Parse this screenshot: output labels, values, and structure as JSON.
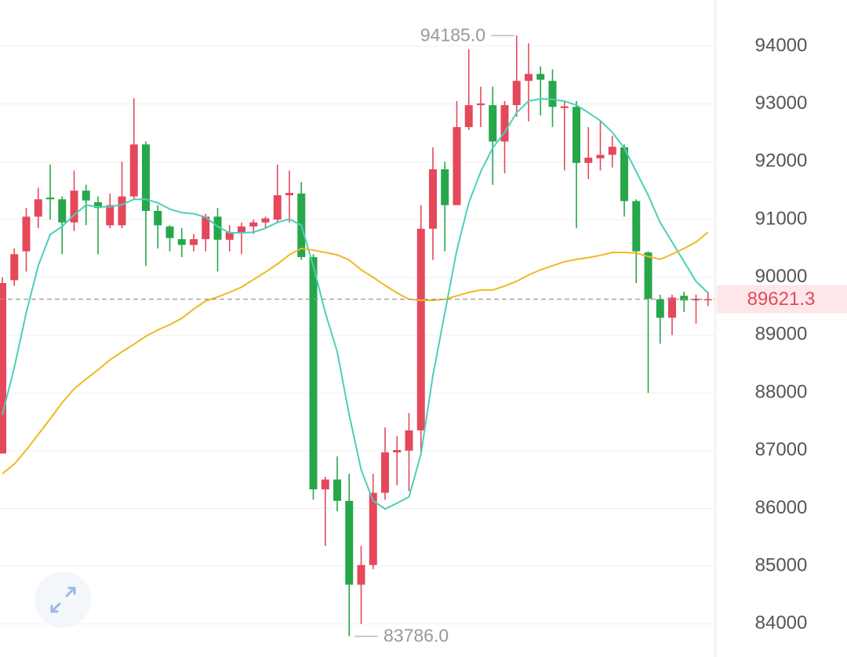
{
  "chart_data": {
    "type": "candlestick",
    "open": [
      86950,
      89950,
      90450,
      91050,
      91380,
      91350,
      90950,
      91500,
      91300,
      90900,
      90900,
      91400,
      92300,
      91150,
      90880,
      90660,
      90560,
      90660,
      91050,
      90650,
      90780,
      90880,
      90950,
      91000,
      91420,
      91450,
      90350,
      86330,
      86500,
      86130,
      84680,
      85020,
      86270,
      86970,
      87000,
      87350,
      90840,
      91870,
      91250,
      92600,
      92980,
      92980,
      92350,
      92980,
      93400,
      93520,
      93400,
      92930,
      92950,
      91980,
      92060,
      92120,
      92250,
      91320,
      90430,
      89620,
      89300,
      89680,
      89600,
      89610
    ],
    "high": [
      90000,
      90500,
      91200,
      91550,
      91950,
      91400,
      91850,
      91600,
      91400,
      91450,
      92000,
      93100,
      92350,
      91250,
      90900,
      90850,
      90750,
      91100,
      91200,
      90900,
      90950,
      91000,
      91050,
      91950,
      91850,
      91650,
      90400,
      86550,
      86900,
      86600,
      85350,
      86600,
      87400,
      87250,
      87650,
      91250,
      92250,
      92000,
      93050,
      93950,
      93300,
      93300,
      93050,
      94185,
      94050,
      93650,
      93600,
      93050,
      93050,
      92600,
      92700,
      92450,
      92300,
      91350,
      90450,
      89700,
      89700,
      89750,
      89700,
      89750
    ],
    "low": [
      86950,
      89850,
      90100,
      90850,
      91000,
      90400,
      90800,
      90900,
      90400,
      90850,
      90850,
      91350,
      90200,
      90500,
      90450,
      90350,
      90450,
      90450,
      90100,
      90450,
      90400,
      90750,
      90850,
      90950,
      90950,
      90300,
      86150,
      85350,
      85950,
      83786,
      84000,
      84950,
      86150,
      86400,
      86300,
      86950,
      90300,
      90450,
      91250,
      92550,
      92600,
      91600,
      91800,
      92780,
      92700,
      92800,
      92600,
      91850,
      90850,
      91700,
      91850,
      91900,
      91050,
      89900,
      88000,
      88850,
      89000,
      89400,
      89200,
      89500
    ],
    "close": [
      89900,
      90400,
      91050,
      91350,
      91350,
      90950,
      91500,
      91330,
      91200,
      91250,
      91400,
      92300,
      91150,
      90900,
      90680,
      90560,
      90660,
      91050,
      90650,
      90780,
      90880,
      90950,
      91020,
      91420,
      91460,
      90350,
      86330,
      86500,
      86130,
      84680,
      85020,
      86270,
      86970,
      87010,
      87350,
      90840,
      91870,
      91250,
      92600,
      92980,
      93010,
      92350,
      92980,
      93400,
      93520,
      93420,
      92950,
      92960,
      91980,
      92070,
      92120,
      92260,
      91320,
      90450,
      89630,
      89300,
      89650,
      89600,
      89630,
      89621.3
    ],
    "up_color": "#e5485b",
    "down_color": "#27a74a",
    "lines": [
      {
        "color": "#4ccfb9",
        "values": [
          87620,
          88440,
          89390,
          90200,
          90740,
          90880,
          91080,
          91250,
          91220,
          91220,
          91260,
          91350,
          91350,
          91290,
          91180,
          91120,
          91100,
          91040,
          90880,
          90770,
          90770,
          90780,
          90850,
          90950,
          91010,
          90900,
          90200,
          89390,
          88710,
          87620,
          86670,
          86130,
          85990,
          86090,
          86200,
          86940,
          88300,
          89390,
          90470,
          91290,
          91830,
          92240,
          92510,
          92850,
          93050,
          93090,
          93080,
          93050,
          92980,
          92850,
          92710,
          92510,
          92240,
          91830,
          91420,
          90950,
          90610,
          90270,
          89930,
          89730
        ]
      },
      {
        "color": "#efb824",
        "values": [
          86600,
          86770,
          87010,
          87280,
          87550,
          87830,
          88070,
          88240,
          88400,
          88570,
          88710,
          88840,
          88980,
          89090,
          89180,
          89290,
          89450,
          89590,
          89660,
          89740,
          89830,
          89960,
          90090,
          90230,
          90390,
          90500,
          90470,
          90430,
          90390,
          90300,
          90130,
          90000,
          89860,
          89730,
          89620,
          89600,
          89600,
          89620,
          89680,
          89740,
          89780,
          89780,
          89850,
          89930,
          90040,
          90130,
          90200,
          90270,
          90310,
          90340,
          90380,
          90430,
          90430,
          90420,
          90360,
          90310,
          90400,
          90500,
          90610,
          90780
        ]
      }
    ],
    "ylim": [
      83550,
      94800
    ],
    "yticks": [
      84000,
      85000,
      86000,
      87000,
      88000,
      89000,
      90000,
      91000,
      92000,
      93000,
      94000
    ],
    "grid": true,
    "max_marker": {
      "value": 94185,
      "label": "94185.0"
    },
    "min_marker": {
      "value": 83786,
      "label": "83786.0"
    },
    "last_price": 89621.3
  }
}
